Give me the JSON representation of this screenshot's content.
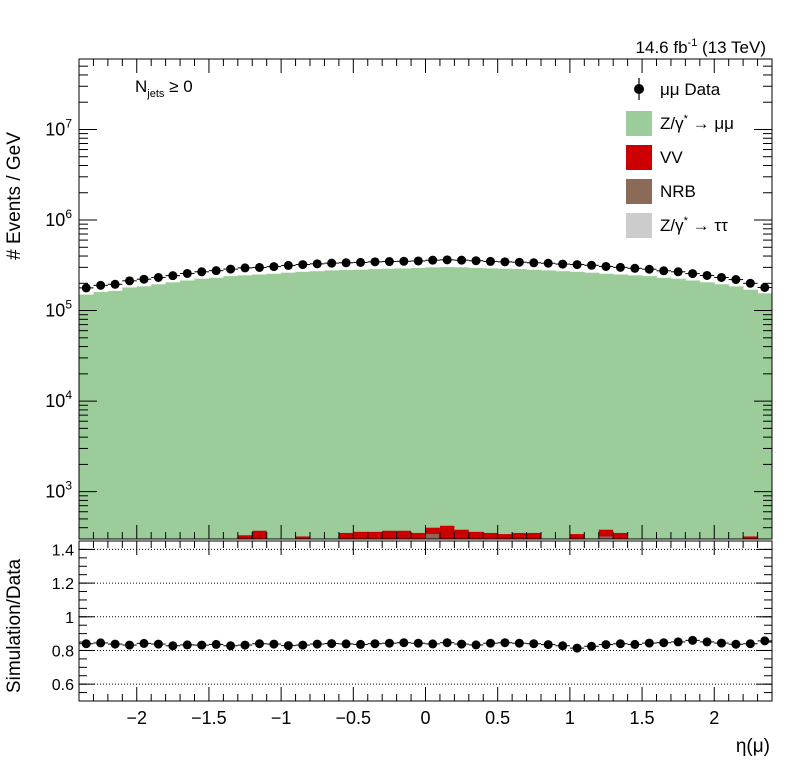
{
  "header": {
    "lumi": "14.6 fb",
    "lumi_exp": "-1",
    "energy": "(13 TeV)"
  },
  "annotation": {
    "main": "N",
    "sub": "jets",
    "rest": "≥ 0"
  },
  "legend": {
    "data": "μμ Data",
    "zmm": "Z/γ",
    "zmm_sup": "*",
    "zmm_rest": "→ μμ",
    "vv": "VV",
    "nrb": "NRB",
    "ztt": "Z/γ",
    "ztt_sup": "*",
    "ztt_rest": "→ ττ"
  },
  "colors": {
    "zmm": "#9ccc9a",
    "vv": "#cc0000",
    "nrb": "#8c6a58",
    "ztt": "#cccccc",
    "data": "#000000"
  },
  "chart_data": [
    {
      "type": "bar",
      "stacked": true,
      "ylabel": "# Events / GeV",
      "yscale": "log",
      "ylim": [
        300,
        60000000
      ],
      "xlim": [
        -2.4,
        2.4
      ],
      "y_ticks": [
        {
          "value": 1000,
          "base": "10",
          "exp": "3"
        },
        {
          "value": 10000,
          "base": "10",
          "exp": "4"
        },
        {
          "value": 100000,
          "base": "10",
          "exp": "5"
        },
        {
          "value": 1000000,
          "base": "10",
          "exp": "6"
        },
        {
          "value": 10000000,
          "base": "10",
          "exp": "7"
        }
      ],
      "bin_edges": [
        -2.4,
        -2.3,
        -2.2,
        -2.1,
        -2.0,
        -1.9,
        -1.8,
        -1.7,
        -1.6,
        -1.5,
        -1.4,
        -1.3,
        -1.2,
        -1.1,
        -1.0,
        -0.9,
        -0.8,
        -0.7,
        -0.6,
        -0.5,
        -0.4,
        -0.3,
        -0.2,
        -0.1,
        0.0,
        0.1,
        0.2,
        0.3,
        0.4,
        0.5,
        0.6,
        0.7,
        0.8,
        0.9,
        1.0,
        1.1,
        1.2,
        1.3,
        1.4,
        1.5,
        1.6,
        1.7,
        1.8,
        1.9,
        2.0,
        2.1,
        2.2,
        2.3,
        2.4
      ],
      "series": [
        {
          "name": "Z/γ* → μμ",
          "values": [
            150000,
            160000,
            165000,
            180000,
            185000,
            195000,
            205000,
            215000,
            225000,
            230000,
            240000,
            245000,
            250000,
            255000,
            262000,
            268000,
            272000,
            278000,
            280000,
            282000,
            287000,
            290000,
            292000,
            295000,
            300000,
            302000,
            300000,
            295000,
            292000,
            290000,
            287000,
            282000,
            278000,
            272000,
            268000,
            262000,
            255000,
            250000,
            245000,
            240000,
            230000,
            225000,
            215000,
            205000,
            195000,
            185000,
            170000,
            155000
          ]
        },
        {
          "name": "VV",
          "values": [
            0,
            0,
            0,
            0,
            0,
            0,
            0,
            0,
            0,
            0,
            0,
            330,
            370,
            0,
            0,
            320,
            0,
            0,
            350,
            360,
            360,
            370,
            370,
            350,
            400,
            420,
            380,
            360,
            350,
            340,
            350,
            350,
            0,
            0,
            340,
            0,
            380,
            350,
            0,
            0,
            0,
            0,
            0,
            0,
            0,
            0,
            320,
            0
          ]
        },
        {
          "name": "NRB",
          "values": [
            0,
            0,
            0,
            0,
            0,
            0,
            0,
            0,
            0,
            0,
            0,
            0,
            0,
            0,
            0,
            0,
            0,
            0,
            0,
            0,
            0,
            0,
            0,
            0,
            340,
            0,
            0,
            0,
            0,
            0,
            0,
            0,
            0,
            0,
            0,
            0,
            320,
            0,
            0,
            0,
            0,
            0,
            0,
            0,
            0,
            0,
            0,
            0
          ]
        },
        {
          "name": "Z/γ* → ττ",
          "values": [
            0,
            0,
            0,
            0,
            0,
            0,
            0,
            0,
            0,
            0,
            0,
            0,
            0,
            0,
            0,
            0,
            0,
            0,
            0,
            0,
            0,
            0,
            0,
            0,
            0,
            0,
            0,
            0,
            0,
            0,
            0,
            0,
            0,
            0,
            0,
            0,
            0,
            0,
            0,
            0,
            0,
            0,
            0,
            0,
            0,
            0,
            0,
            0
          ]
        },
        {
          "name": "μμ Data",
          "type": "scatter",
          "values": [
            178000,
            190000,
            195000,
            213000,
            222000,
            232000,
            243000,
            257000,
            268000,
            276000,
            287000,
            296000,
            299000,
            306000,
            315000,
            322000,
            328000,
            334000,
            337000,
            340000,
            345000,
            348000,
            350000,
            353000,
            360000,
            363000,
            360000,
            355000,
            349000,
            345000,
            342000,
            337000,
            333000,
            326000,
            322000,
            316000,
            307000,
            300000,
            293000,
            286000,
            275000,
            268000,
            256000,
            244000,
            232000,
            220000,
            200000,
            180000
          ]
        }
      ]
    },
    {
      "type": "scatter",
      "ylabel": "Simulation/Data",
      "xlabel": "η(μ)",
      "ylim": [
        0.5,
        1.45
      ],
      "xlim": [
        -2.4,
        2.4
      ],
      "y_ticks": [
        "0.6",
        "0.8",
        "1",
        "1.2",
        "1.4"
      ],
      "y_tick_values": [
        0.6,
        0.8,
        1.0,
        1.2,
        1.4
      ],
      "x_ticks": [
        "−2",
        "−1.5",
        "−1",
        "−0.5",
        "0",
        "0.5",
        "1",
        "1.5",
        "2"
      ],
      "x_tick_values": [
        -2,
        -1.5,
        -1,
        -0.5,
        0,
        0.5,
        1,
        1.5,
        2
      ],
      "grid_y": [
        0.6,
        0.8,
        1.0,
        1.2,
        1.4
      ],
      "values": [
        0.84,
        0.845,
        0.838,
        0.832,
        0.842,
        0.838,
        0.828,
        0.833,
        0.832,
        0.836,
        0.828,
        0.832,
        0.84,
        0.838,
        0.829,
        0.832,
        0.838,
        0.841,
        0.839,
        0.836,
        0.84,
        0.843,
        0.846,
        0.843,
        0.839,
        0.846,
        0.838,
        0.833,
        0.843,
        0.846,
        0.843,
        0.84,
        0.835,
        0.828,
        0.814,
        0.825,
        0.835,
        0.84,
        0.836,
        0.844,
        0.846,
        0.851,
        0.86,
        0.851,
        0.844,
        0.837,
        0.84,
        0.857
      ]
    }
  ]
}
